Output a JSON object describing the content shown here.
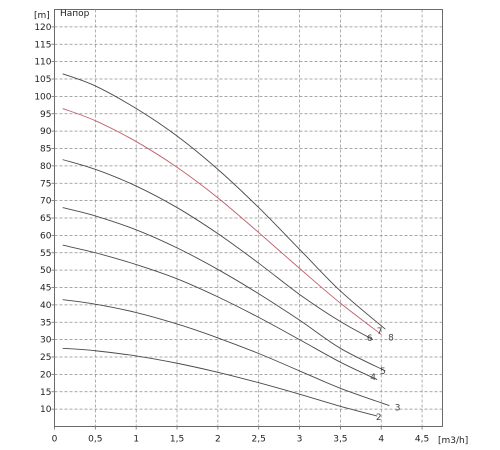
{
  "chart_data": {
    "type": "line",
    "title": "Напор",
    "ylabel": "[m]",
    "xlabel": "[m3/h]",
    "xlim": [
      0,
      4.75
    ],
    "ylim": [
      5,
      125
    ],
    "x_tick_labels": [
      "0",
      "0,5",
      "1",
      "1,5",
      "2",
      "2,5",
      "3",
      "3,5",
      "4",
      "4,5"
    ],
    "y_tick_labels": [
      "10",
      "15",
      "20",
      "25",
      "30",
      "35",
      "40",
      "45",
      "50",
      "55",
      "60",
      "65",
      "70",
      "75",
      "80",
      "85",
      "90",
      "95",
      "100",
      "105",
      "110",
      "115",
      "120"
    ],
    "grid": true,
    "series": [
      {
        "name": "2",
        "color": "#4a4a4a",
        "x": [
          0.1,
          0.5,
          1.0,
          1.5,
          2.0,
          2.5,
          3.0,
          3.5,
          3.95
        ],
        "y": [
          27.5,
          26.8,
          25.3,
          23.2,
          20.6,
          17.6,
          14.3,
          10.8,
          8.0
        ]
      },
      {
        "name": "3",
        "color": "#4a4a4a",
        "x": [
          0.1,
          0.5,
          1.0,
          1.5,
          2.0,
          2.5,
          3.0,
          3.5,
          4.1
        ],
        "y": [
          41.5,
          40.2,
          37.8,
          34.5,
          30.5,
          26.0,
          21.0,
          16.0,
          11.0
        ]
      },
      {
        "name": "4",
        "color": "#4a4a4a",
        "x": [
          0.1,
          0.5,
          1.0,
          1.5,
          2.0,
          2.5,
          3.0,
          3.5,
          3.95
        ],
        "y": [
          57.2,
          55.0,
          51.6,
          47.5,
          42.3,
          36.4,
          30.0,
          23.5,
          18.5
        ]
      },
      {
        "name": "5",
        "color": "#4a4a4a",
        "x": [
          0.1,
          0.5,
          1.0,
          1.5,
          2.0,
          2.5,
          3.0,
          3.5,
          4.05
        ],
        "y": [
          68.0,
          65.6,
          61.6,
          56.4,
          50.2,
          43.2,
          35.6,
          27.5,
          21.0
        ]
      },
      {
        "name": "6",
        "color": "#4a4a4a",
        "x": [
          0.1,
          0.5,
          1.0,
          1.5,
          2.0,
          2.5,
          3.0,
          3.5,
          3.9
        ],
        "y": [
          81.8,
          79.0,
          74.2,
          68.0,
          60.5,
          52.0,
          43.0,
          35.2,
          30.0
        ]
      },
      {
        "name": "7",
        "color": "#c0606a",
        "x": [
          0.1,
          0.5,
          1.0,
          1.5,
          2.0,
          2.5,
          3.0,
          3.5,
          4.0
        ],
        "y": [
          96.5,
          93.0,
          87.0,
          79.6,
          70.8,
          60.8,
          50.5,
          40.5,
          31.5
        ]
      },
      {
        "name": "8",
        "color": "#4a4a4a",
        "x": [
          0.1,
          0.5,
          1.0,
          1.5,
          2.0,
          2.5,
          3.0,
          3.5,
          4.05
        ],
        "y": [
          106.5,
          103.0,
          96.5,
          88.6,
          79.0,
          68.0,
          56.0,
          44.0,
          33.0
        ]
      }
    ],
    "curve_labels": [
      {
        "text": "2",
        "x": 3.97,
        "y": 7.7
      },
      {
        "text": "3",
        "x": 4.2,
        "y": 10.5
      },
      {
        "text": "4",
        "x": 3.9,
        "y": 19.3
      },
      {
        "text": "5",
        "x": 4.02,
        "y": 21.0
      },
      {
        "text": "6",
        "x": 3.86,
        "y": 30.4
      },
      {
        "text": "7",
        "x": 3.98,
        "y": 32.5
      },
      {
        "text": "8",
        "x": 4.12,
        "y": 30.6
      }
    ]
  }
}
